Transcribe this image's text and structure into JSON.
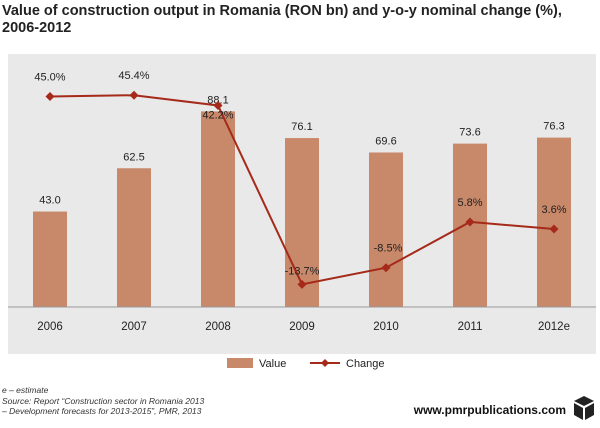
{
  "title": "Value of construction output in Romania (RON bn) and y-o-y nominal change (%), 2006-2012",
  "notes": {
    "line1": "e – estimate",
    "line2": "Source: Report “Construction sector in Romania 2013",
    "line3": "– Development forecasts for 2013-2015”, PMR, 2013"
  },
  "brand": {
    "text": "www.pmrpublications.com",
    "icon": "cube-logo-icon"
  },
  "colors": {
    "bar": "#c8886a",
    "line": "#a52a1a",
    "plot_bg": "#e9e9e9"
  },
  "chart_data": {
    "type": "bar",
    "categories": [
      "2006",
      "2007",
      "2008",
      "2009",
      "2010",
      "2011",
      "2012e"
    ],
    "series": [
      {
        "name": "Value",
        "type": "bar",
        "values": [
          43.0,
          62.5,
          88.1,
          76.1,
          69.6,
          73.6,
          76.3
        ],
        "labels": [
          "43.0",
          "62.5",
          "88.1",
          "76.1",
          "69.6",
          "73.6",
          "76.3"
        ]
      },
      {
        "name": "Change",
        "type": "line",
        "values": [
          45.0,
          45.4,
          42.2,
          -13.7,
          -8.5,
          5.8,
          3.6
        ],
        "labels": [
          "45.0%",
          "45.4%",
          "42.2%",
          "-13.7%",
          "-8.5%",
          "5.8%",
          "3.6%"
        ]
      }
    ],
    "ylim_value": [
      0,
      100
    ],
    "ylim_change": [
      -20,
      60
    ],
    "grid": false,
    "legend_position": "bottom"
  }
}
